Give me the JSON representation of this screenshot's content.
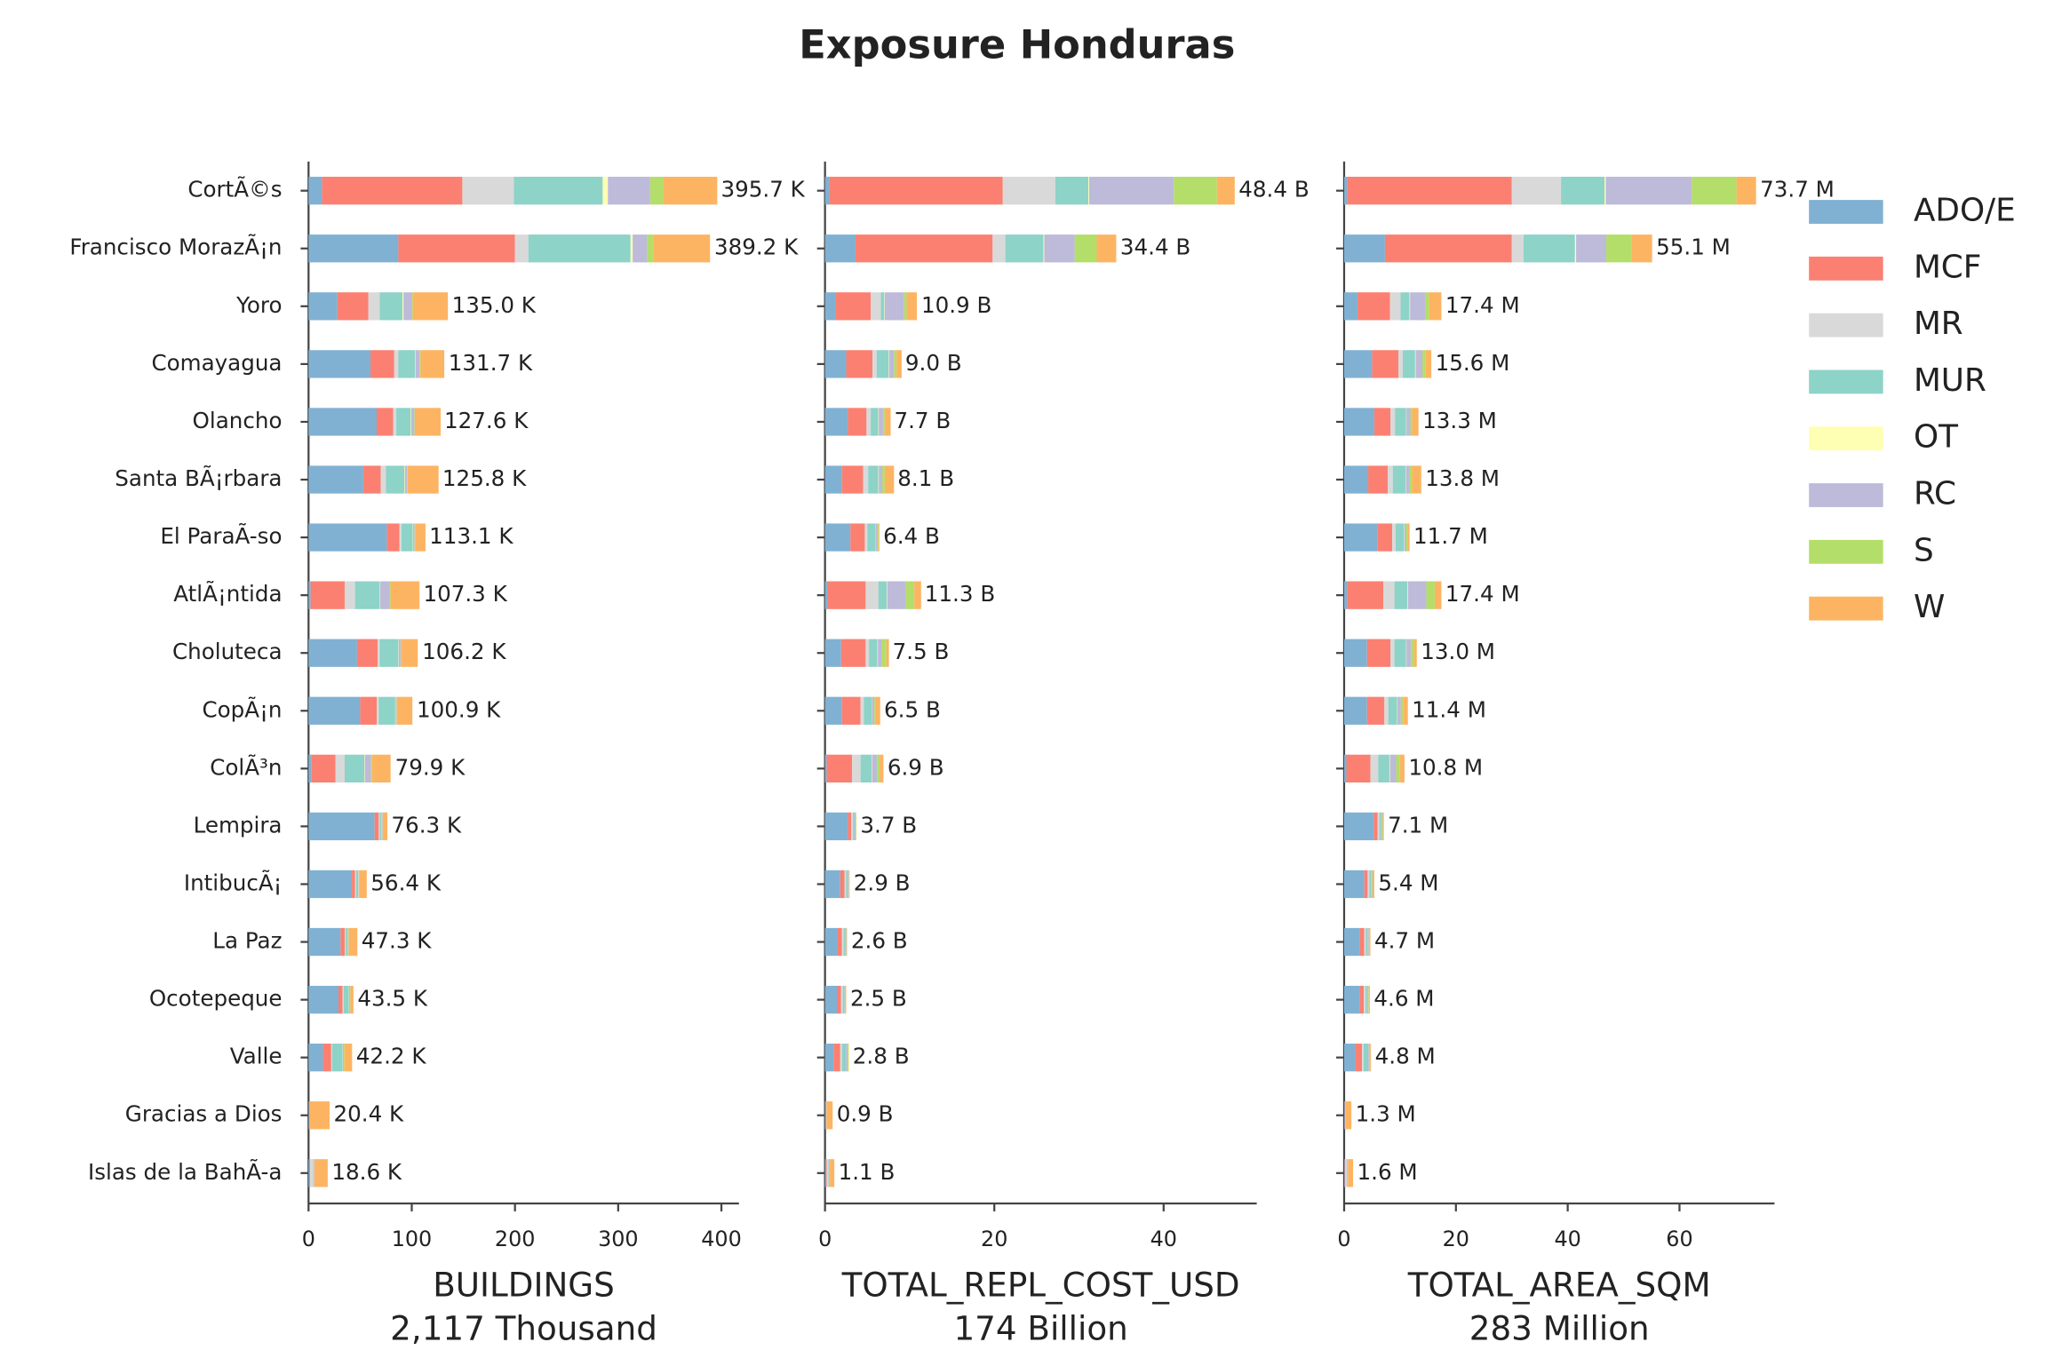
{
  "title": "Exposure Honduras",
  "chart_data": [
    {
      "type": "bar",
      "orientation": "horizontal",
      "legend": "right",
      "categories": [
        "CortÃ©s",
        "Francisco MorazÃ¡n",
        "Yoro",
        "Comayagua",
        "Olancho",
        "Santa BÃ¡rbara",
        "El ParaÃ-so",
        "AtlÃ¡ntida",
        "Choluteca",
        "CopÃ¡n",
        "ColÃ³n",
        "Lempira",
        "IntibucÃ¡",
        "La Paz",
        "Ocotepeque",
        "Valle",
        "Gracias a Dios",
        "Islas de la BahÃ-a"
      ],
      "xlabel": "BUILDINGS",
      "xlabel_total": "2,117 Thousand",
      "xlim": [
        0,
        417
      ],
      "xticks": [
        0,
        100,
        200,
        300,
        400
      ],
      "series": [
        {
          "name": "ADO/E",
          "color": "#80b1d3",
          "values": [
            13,
            87,
            28,
            60,
            66,
            53,
            76,
            2,
            47,
            50,
            3,
            64,
            42,
            31,
            29,
            14,
            0.5,
            1
          ]
        },
        {
          "name": "MCF",
          "color": "#fb8072",
          "values": [
            136,
            113,
            30,
            23,
            16,
            17,
            12,
            33,
            20,
            16,
            23,
            4,
            3,
            4,
            4,
            8,
            0.3,
            0.5
          ]
        },
        {
          "name": "MR",
          "color": "#d9d9d9",
          "values": [
            50,
            13,
            11,
            4,
            3,
            5,
            2,
            10,
            2,
            2,
            9,
            1,
            1,
            1,
            1,
            1,
            0.2,
            3
          ]
        },
        {
          "name": "MUR",
          "color": "#8dd3c7",
          "values": [
            86,
            99,
            22,
            16,
            14,
            18,
            11,
            24,
            18,
            16,
            19,
            2,
            2,
            2,
            5,
            10,
            0.3,
            0.5
          ]
        },
        {
          "name": "OT",
          "color": "#ffffb3",
          "values": [
            5,
            2,
            1,
            0.5,
            0.5,
            0.5,
            0.3,
            0.5,
            0.3,
            0.3,
            0.5,
            0.2,
            0.2,
            0.2,
            0.2,
            0.2,
            0,
            0
          ]
        },
        {
          "name": "RC",
          "color": "#bebada",
          "values": [
            41,
            14,
            8,
            4,
            3,
            2,
            1.5,
            9,
            2,
            1,
            6,
            0.5,
            0.5,
            0.5,
            1,
            1,
            0.1,
            0.5
          ]
        },
        {
          "name": "S",
          "color": "#b3de69",
          "values": [
            13,
            6,
            1,
            1,
            0.5,
            0.5,
            0.5,
            1,
            0.5,
            0.3,
            1,
            0.2,
            0.2,
            0.2,
            0.3,
            0.5,
            0,
            0.1
          ]
        },
        {
          "name": "W",
          "color": "#fdb462",
          "values": [
            52,
            55,
            34,
            23,
            25,
            30,
            10,
            28,
            16,
            15,
            18,
            4.5,
            7.5,
            8.4,
            3,
            7.5,
            19,
            13
          ]
        }
      ],
      "totals": [
        395.7,
        389.2,
        135.0,
        131.7,
        127.6,
        125.8,
        113.1,
        107.3,
        106.2,
        100.9,
        79.9,
        76.3,
        56.4,
        47.3,
        43.5,
        42.2,
        20.4,
        18.6
      ],
      "total_labels": [
        "395.7 K",
        "389.2 K",
        "135.0 K",
        "131.7 K",
        "127.6 K",
        "125.8 K",
        "113.1 K",
        "107.3 K",
        "106.2 K",
        "100.9 K",
        "79.9 K",
        "76.3 K",
        "56.4 K",
        "47.3 K",
        "43.5 K",
        "42.2 K",
        "20.4 K",
        "18.6 K"
      ]
    },
    {
      "type": "bar",
      "orientation": "horizontal",
      "xlabel": "TOTAL_REPL_COST_USD",
      "xlabel_total": "174 Billion",
      "xlim": [
        0,
        51
      ],
      "xticks": [
        0,
        20,
        40
      ],
      "series": [
        {
          "values": [
            0.5,
            3.6,
            1.2,
            2.5,
            2.7,
            2,
            3,
            0.3,
            1.9,
            2,
            0.2,
            2.7,
            1.8,
            1.5,
            1.4,
            1,
            0.05,
            0.1
          ]
        },
        {
          "values": [
            20.5,
            16.2,
            4.2,
            3.1,
            2.2,
            2.5,
            1.7,
            4.5,
            2.9,
            2.2,
            3,
            0.4,
            0.5,
            0.5,
            0.5,
            0.8,
            0.05,
            0.1
          ]
        },
        {
          "values": [
            6.2,
            1.5,
            1.2,
            0.5,
            0.5,
            0.6,
            0.3,
            1.5,
            0.4,
            0.4,
            1,
            0.2,
            0.2,
            0.2,
            0.2,
            0.2,
            0.02,
            0.2
          ]
        },
        {
          "values": [
            3.9,
            4.5,
            0.4,
            1.4,
            0.9,
            1.2,
            1,
            1,
            1,
            0.9,
            1.3,
            0.2,
            0.2,
            0.2,
            0.2,
            0.5,
            0.03,
            0.05
          ]
        },
        {
          "values": [
            0.1,
            0.1,
            0.05,
            0.05,
            0.05,
            0.05,
            0.02,
            0.05,
            0.05,
            0.02,
            0.05,
            0.01,
            0.01,
            0.01,
            0.01,
            0.01,
            0,
            0
          ]
        },
        {
          "values": [
            10,
            3.6,
            2.3,
            0.6,
            0.5,
            0.4,
            0.2,
            2.2,
            0.4,
            0.3,
            0.6,
            0.1,
            0.1,
            0.1,
            0.1,
            0.15,
            0.02,
            0.1
          ]
        },
        {
          "values": [
            5.1,
            2.6,
            0.3,
            0.3,
            0.2,
            0.3,
            0.1,
            1,
            0.6,
            0.2,
            0.3,
            0.04,
            0.04,
            0.04,
            0.04,
            0.09,
            0.01,
            0.02
          ]
        },
        {
          "values": [
            2.1,
            2.3,
            1.2,
            0.6,
            0.7,
            1.1,
            0.1,
            0.8,
            0.3,
            0.5,
            0.45,
            0.05,
            0.05,
            0.05,
            0.05,
            0.05,
            0.72,
            0.53
          ]
        }
      ],
      "totals": [
        48.4,
        34.4,
        10.9,
        9.0,
        7.7,
        8.1,
        6.4,
        11.3,
        7.5,
        6.5,
        6.9,
        3.7,
        2.9,
        2.6,
        2.5,
        2.8,
        0.9,
        1.1
      ],
      "total_labels": [
        "48.4 B",
        "34.4 B",
        "10.9 B",
        "9.0 B",
        "7.7 B",
        "8.1 B",
        "6.4 B",
        "11.3 B",
        "7.5 B",
        "6.5 B",
        "6.9 B",
        "3.7 B",
        "2.9 B",
        "2.6 B",
        "2.5 B",
        "2.8 B",
        "0.9 B",
        "1.1 B"
      ]
    },
    {
      "type": "bar",
      "orientation": "horizontal",
      "xlabel": "TOTAL_AREA_SQM",
      "xlabel_total": "283 Million",
      "xlim": [
        0,
        77
      ],
      "xticks": [
        0,
        20,
        40,
        60
      ],
      "series": [
        {
          "values": [
            0.5,
            7.3,
            2.4,
            5,
            5.4,
            4.3,
            6,
            0.5,
            4.1,
            4.1,
            0.4,
            5.3,
            3.6,
            2.8,
            2.8,
            2,
            0.1,
            0.1
          ]
        },
        {
          "values": [
            29.5,
            22.7,
            5.8,
            4.7,
            2.9,
            3.5,
            2.6,
            6.5,
            4.2,
            3.1,
            4.3,
            0.7,
            0.6,
            0.8,
            0.7,
            1.2,
            0.05,
            0.1
          ]
        },
        {
          "values": [
            8.8,
            2.1,
            1.9,
            0.8,
            0.8,
            0.9,
            0.6,
            2,
            0.7,
            0.7,
            1.4,
            0.3,
            0.3,
            0.3,
            0.3,
            0.3,
            0.03,
            0.3
          ]
        },
        {
          "values": [
            7.8,
            9.2,
            1.6,
            2.2,
            2,
            2.3,
            1.5,
            2.3,
            2.1,
            1.6,
            2,
            0.3,
            0.3,
            0.3,
            0.3,
            0.8,
            0.05,
            0.05
          ]
        },
        {
          "values": [
            0.2,
            0.2,
            0.1,
            0.1,
            0.05,
            0.05,
            0.05,
            0.1,
            0.05,
            0.05,
            0.1,
            0.02,
            0.02,
            0.02,
            0.02,
            0.02,
            0,
            0
          ]
        },
        {
          "values": [
            15.4,
            5.4,
            2.8,
            1.2,
            0.7,
            0.7,
            0.3,
            3.3,
            0.8,
            0.6,
            1.1,
            0.2,
            0.2,
            0.2,
            0.2,
            0.2,
            0.02,
            0.1
          ]
        },
        {
          "values": [
            8,
            4.5,
            0.6,
            0.5,
            0.3,
            0.4,
            0.3,
            1.5,
            0.6,
            0.4,
            0.6,
            0.1,
            0.08,
            0.08,
            0.08,
            0.13,
            0.01,
            0.03
          ]
        },
        {
          "values": [
            3.5,
            3.7,
            2.2,
            1.1,
            1.15,
            1.65,
            0.35,
            1.2,
            0.45,
            0.85,
            0.9,
            0.18,
            0.3,
            0.2,
            0.2,
            0.15,
            1.04,
            0.92
          ]
        }
      ],
      "totals": [
        73.7,
        55.1,
        17.4,
        15.6,
        13.3,
        13.8,
        11.7,
        17.4,
        13.0,
        11.4,
        10.8,
        7.1,
        5.4,
        4.7,
        4.6,
        4.8,
        1.3,
        1.6
      ],
      "total_labels": [
        "73.7 M",
        "55.1 M",
        "17.4 M",
        "15.6 M",
        "13.3 M",
        "13.8 M",
        "11.7 M",
        "17.4 M",
        "13.0 M",
        "11.4 M",
        "10.8 M",
        "7.1 M",
        "5.4 M",
        "4.7 M",
        "4.6 M",
        "4.8 M",
        "1.3 M",
        "1.6 M"
      ]
    }
  ]
}
